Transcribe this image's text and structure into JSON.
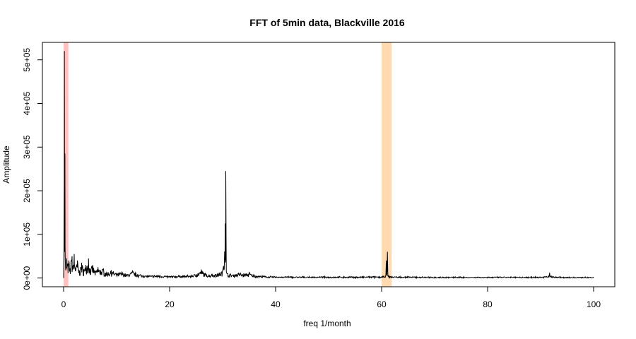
{
  "chart_data": {
    "type": "line",
    "title": "FFT of 5min data, Blackville 2016",
    "xlabel": "freq 1/month",
    "ylabel": "Amplitude",
    "xlim": [
      -4,
      104
    ],
    "ylim": [
      -20000,
      540000
    ],
    "x_ticks": [
      0,
      20,
      40,
      60,
      80,
      100
    ],
    "x_tick_labels": [
      "0",
      "20",
      "40",
      "60",
      "80",
      "100"
    ],
    "y_ticks": [
      0,
      100000,
      200000,
      300000,
      400000,
      500000
    ],
    "y_tick_labels": [
      "0e+00",
      "1e+05",
      "2e+05",
      "3e+05",
      "4e+05",
      "5e+05"
    ],
    "grid": false,
    "highlight_bands": [
      {
        "x_start": 0.0,
        "x_end": 0.9,
        "color": "#ffc0c0"
      },
      {
        "x_start": 60.0,
        "x_end": 61.9,
        "color": "#ffdab0"
      }
    ],
    "series": [
      {
        "color": "#000000",
        "baseline_level": 2500,
        "points": [
          [
            0.0,
            0
          ],
          [
            0.15,
            520000
          ],
          [
            0.2,
            60000
          ],
          [
            0.25,
            285000
          ],
          [
            0.3,
            50000
          ],
          [
            0.4,
            20000
          ],
          [
            0.6,
            45000
          ],
          [
            0.8,
            30000
          ],
          [
            1.0,
            40000
          ],
          [
            1.2,
            22000
          ],
          [
            1.4,
            38000
          ],
          [
            1.6,
            50000
          ],
          [
            1.8,
            30000
          ],
          [
            2.0,
            55000
          ],
          [
            2.3,
            25000
          ],
          [
            2.6,
            40000
          ],
          [
            3.0,
            15000
          ],
          [
            3.4,
            35000
          ],
          [
            3.8,
            20000
          ],
          [
            4.2,
            30000
          ],
          [
            4.7,
            45000
          ],
          [
            5.0,
            20000
          ],
          [
            5.5,
            30000
          ],
          [
            6.0,
            15000
          ],
          [
            6.5,
            25000
          ],
          [
            7.0,
            18000
          ],
          [
            7.5,
            22000
          ],
          [
            8.0,
            12000
          ],
          [
            9.0,
            18000
          ],
          [
            10.0,
            10000
          ],
          [
            11.0,
            14000
          ],
          [
            12.0,
            8000
          ],
          [
            13.0,
            16000
          ],
          [
            14.0,
            9000
          ],
          [
            15.0,
            7000
          ],
          [
            16.0,
            5000
          ],
          [
            18.0,
            6000
          ],
          [
            20.0,
            4000
          ],
          [
            22.0,
            5000
          ],
          [
            24.0,
            6000
          ],
          [
            25.0,
            9000
          ],
          [
            26.0,
            18000
          ],
          [
            27.0,
            8000
          ],
          [
            28.0,
            9000
          ],
          [
            29.0,
            10000
          ],
          [
            30.0,
            16000
          ],
          [
            30.5,
            125000
          ],
          [
            30.55,
            40000
          ],
          [
            30.6,
            245000
          ],
          [
            30.7,
            15000
          ],
          [
            31.0,
            10000
          ],
          [
            32.0,
            8000
          ],
          [
            33.0,
            12000
          ],
          [
            34.0,
            10000
          ],
          [
            35.0,
            12000
          ],
          [
            36.0,
            6000
          ],
          [
            38.0,
            4000
          ],
          [
            40.0,
            3000
          ],
          [
            45.0,
            2500
          ],
          [
            50.0,
            2500
          ],
          [
            55.0,
            2500
          ],
          [
            58.0,
            3000
          ],
          [
            60.0,
            3000
          ],
          [
            60.8,
            5000
          ],
          [
            60.9,
            40000
          ],
          [
            61.0,
            8000
          ],
          [
            61.1,
            60000
          ],
          [
            61.2,
            5000
          ],
          [
            62.0,
            3000
          ],
          [
            65.0,
            2500
          ],
          [
            70.0,
            2000
          ],
          [
            75.0,
            2000
          ],
          [
            80.0,
            2000
          ],
          [
            85.0,
            2000
          ],
          [
            90.0,
            2500
          ],
          [
            91.5,
            4000
          ],
          [
            91.7,
            12000
          ],
          [
            91.9,
            4000
          ],
          [
            93.0,
            2000
          ],
          [
            95.0,
            1500
          ],
          [
            100.0,
            1500
          ]
        ]
      }
    ]
  }
}
